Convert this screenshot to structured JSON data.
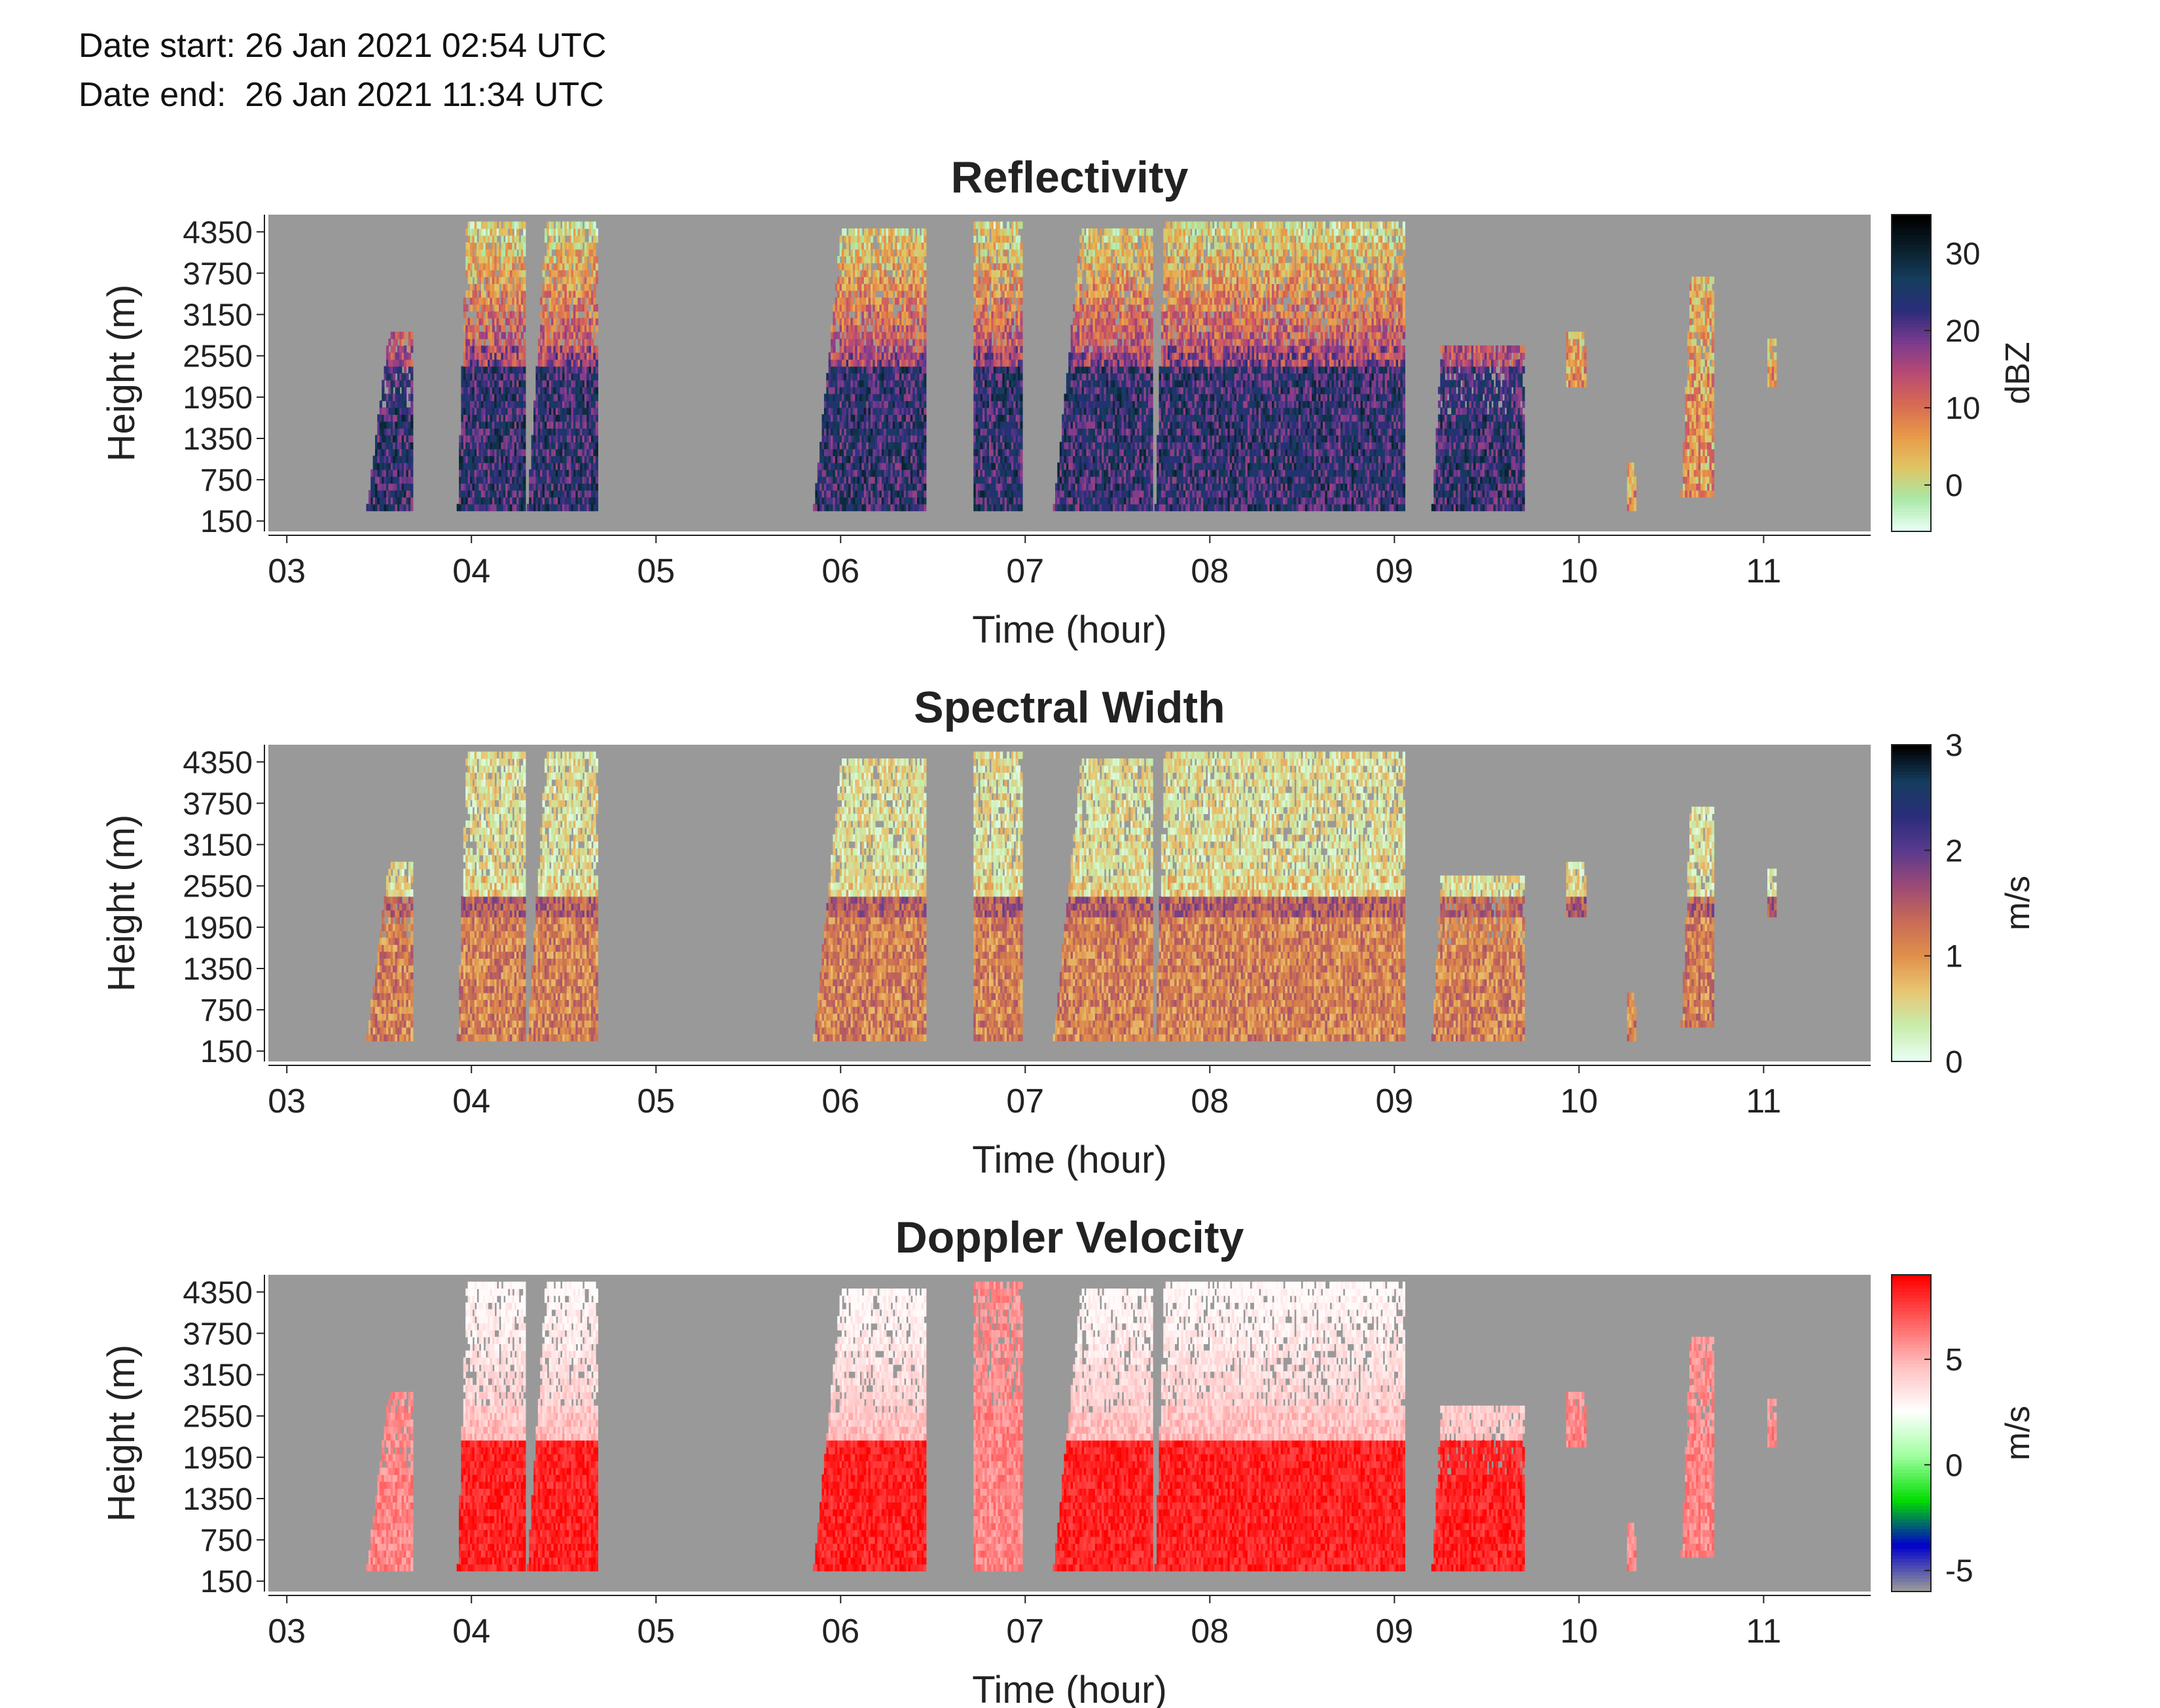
{
  "header": {
    "date_start": "Date start: 26 Jan 2021 02:54 UTC",
    "date_end": "Date end:  26 Jan 2021 11:34 UTC"
  },
  "chart_data": [
    {
      "type": "heatmap",
      "title": "Reflectivity",
      "xlabel": "Time (hour)",
      "ylabel": "Height (m)",
      "x_ticks": [
        "03",
        "04",
        "05",
        "06",
        "07",
        "08",
        "09",
        "10",
        "11"
      ],
      "y_ticks": [
        "150",
        "750",
        "1350",
        "1950",
        "2550",
        "3150",
        "3750",
        "4350"
      ],
      "xlim": [
        2.9,
        11.58
      ],
      "ylim": [
        0,
        4600
      ],
      "colorbar": {
        "label": "dBZ",
        "ticks": [
          "0",
          "10",
          "20",
          "30"
        ],
        "range": [
          -6,
          35
        ]
      },
      "background_color": "#999999"
    },
    {
      "type": "heatmap",
      "title": "Spectral Width",
      "xlabel": "Time (hour)",
      "ylabel": "Height (m)",
      "x_ticks": [
        "03",
        "04",
        "05",
        "06",
        "07",
        "08",
        "09",
        "10",
        "11"
      ],
      "y_ticks": [
        "150",
        "750",
        "1350",
        "1950",
        "2550",
        "3150",
        "3750",
        "4350"
      ],
      "xlim": [
        2.9,
        11.58
      ],
      "ylim": [
        0,
        4600
      ],
      "colorbar": {
        "label": "m/s",
        "ticks": [
          "0",
          "1",
          "2",
          "3"
        ],
        "range": [
          0,
          3
        ]
      },
      "background_color": "#999999"
    },
    {
      "type": "heatmap",
      "title": "Doppler Velocity",
      "xlabel": "Time (hour)",
      "ylabel": "Height (m)",
      "x_ticks": [
        "03",
        "04",
        "05",
        "06",
        "07",
        "08",
        "09",
        "10",
        "11"
      ],
      "y_ticks": [
        "150",
        "750",
        "1350",
        "1950",
        "2550",
        "3150",
        "3750",
        "4350"
      ],
      "xlim": [
        2.9,
        11.58
      ],
      "ylim": [
        0,
        4600
      ],
      "colorbar": {
        "label": "m/s",
        "ticks": [
          "-5",
          "0",
          "5"
        ],
        "range": [
          -6,
          9
        ]
      },
      "background_color": "#999999"
    }
  ],
  "precip_segments": [
    {
      "t0": 3.43,
      "t1": 3.68,
      "base": 300,
      "top": 2900,
      "lean": 0.12
    },
    {
      "t0": 3.92,
      "t1": 4.28,
      "base": 300,
      "top": 4500,
      "lean": 0.05
    },
    {
      "t0": 4.3,
      "t1": 4.68,
      "base": 300,
      "top": 4500,
      "lean": 0.1
    },
    {
      "t0": 5.85,
      "t1": 6.45,
      "base": 300,
      "top": 4400,
      "lean": 0.15
    },
    {
      "t0": 6.72,
      "t1": 6.98,
      "base": 300,
      "top": 4500,
      "lean": 0.0
    },
    {
      "t0": 7.15,
      "t1": 7.68,
      "base": 300,
      "top": 4400,
      "lean": 0.15
    },
    {
      "t0": 7.7,
      "t1": 9.05,
      "base": 300,
      "top": 4500,
      "lean": 0.05
    },
    {
      "t0": 9.2,
      "t1": 9.7,
      "base": 300,
      "top": 2700,
      "lean": 0.05
    },
    {
      "t0": 9.93,
      "t1": 10.03,
      "base": 2100,
      "top": 2900,
      "lean": 0.0
    },
    {
      "t0": 10.26,
      "t1": 10.3,
      "base": 300,
      "top": 1000,
      "lean": 0.0
    },
    {
      "t0": 10.55,
      "t1": 10.72,
      "base": 500,
      "top": 3700,
      "lean": 0.05
    },
    {
      "t0": 11.02,
      "t1": 11.06,
      "base": 2100,
      "top": 2800,
      "lean": 0.0
    }
  ],
  "colors": {
    "missing": "#999999",
    "reflectivity_map": [
      "#e9fff4",
      "#a9e8a6",
      "#e0c464",
      "#e89a48",
      "#d86a54",
      "#b84a74",
      "#7a3a8e",
      "#2a2d7a",
      "#153d5e",
      "#0a1e2a",
      "#000000"
    ],
    "width_map": [
      "#e9fff4",
      "#c8ecaa",
      "#e8c472",
      "#e0904a",
      "#c86a56",
      "#9c4a76",
      "#5a3a8e",
      "#2a2d7a",
      "#153d5e",
      "#000000"
    ],
    "velocity_map": [
      "#999999",
      "#0000cc",
      "#00dd00",
      "#a0ffa0",
      "#ffffff",
      "#ffc0c0",
      "#ff6060",
      "#ff0000"
    ]
  }
}
